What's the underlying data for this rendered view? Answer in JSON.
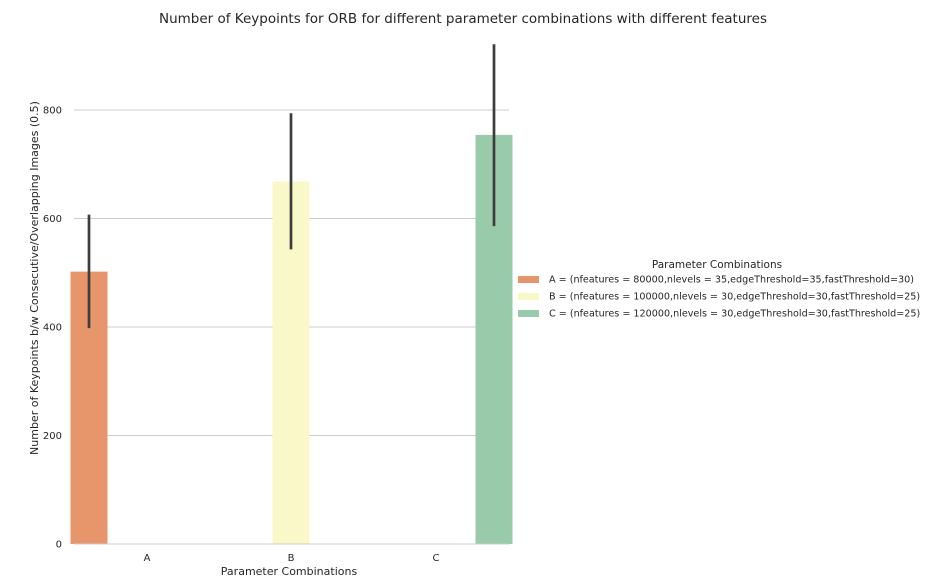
{
  "chart_data": {
    "type": "bar",
    "title": "Number of Keypoints for ORB for different parameter combinations with different features",
    "xlabel": "Parameter Combinations",
    "ylabel": "Number of Keypoints b/w Consecutive/Overlapping Images (0.5)",
    "categories": [
      "A",
      "B",
      "C"
    ],
    "ylim": [
      0,
      940
    ],
    "yticks": [
      0,
      200,
      400,
      600,
      800
    ],
    "grid": "horizontal",
    "legend": {
      "title": "Parameter Combinations",
      "placement": "right"
    },
    "series": [
      {
        "name": "A = (nfeatures = 80000,nlevels = 35,edgeThreshold=35,fastThreshold=30)",
        "category": "A",
        "value": 502,
        "error": [
          398,
          607
        ],
        "color": "#e7956b"
      },
      {
        "name": "B = (nfeatures = 100000,nlevels = 30,edgeThreshold=30,fastThreshold=25)",
        "category": "B",
        "value": 668,
        "error": [
          543,
          794
        ],
        "color": "#f8f8c9"
      },
      {
        "name": "C = (nfeatures = 120000,nlevels = 30,edgeThreshold=30,fastThreshold=25)",
        "category": "C",
        "value": 754,
        "error": [
          586,
          921
        ],
        "color": "#99cbab"
      }
    ]
  }
}
